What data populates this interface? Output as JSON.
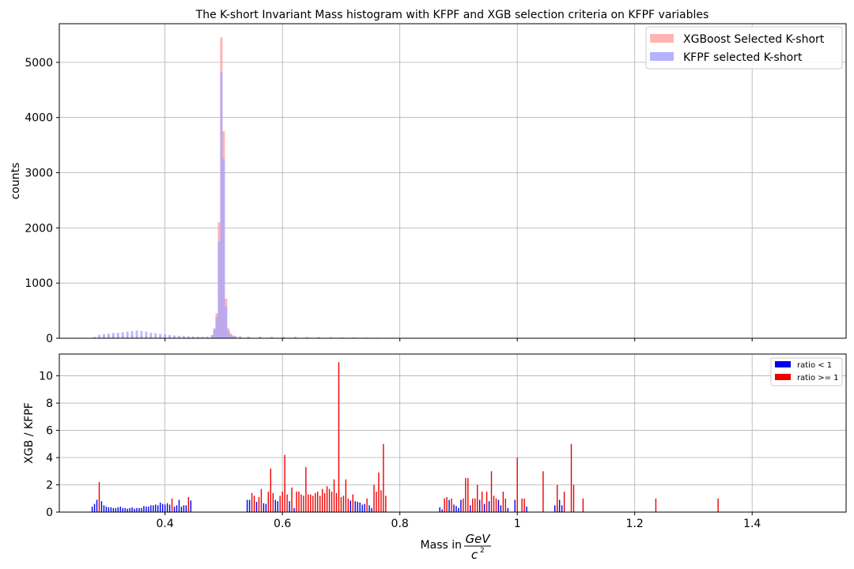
{
  "chart_data": [
    {
      "type": "bar",
      "title": "The K-short Invariant Mass histogram with KFPF and XGB selection criteria on KFPF variables",
      "xlabel": "",
      "ylabel": "counts",
      "xlim": [
        0.22,
        1.56
      ],
      "ylim": [
        0,
        5700
      ],
      "xticks": [
        0.4,
        0.6,
        0.8,
        1.0,
        1.2,
        1.4
      ],
      "yticks": [
        0,
        1000,
        2000,
        3000,
        4000,
        5000
      ],
      "grid": true,
      "legend_position": "top-right",
      "bin_width": 0.004,
      "series": [
        {
          "name": "XGBoost Selected K-short",
          "color": "#ff9a9a",
          "x": [
            0.27,
            0.278,
            0.286,
            0.294,
            0.302,
            0.31,
            0.318,
            0.326,
            0.334,
            0.342,
            0.35,
            0.358,
            0.366,
            0.374,
            0.382,
            0.39,
            0.398,
            0.406,
            0.414,
            0.422,
            0.43,
            0.438,
            0.446,
            0.454,
            0.462,
            0.47,
            0.478,
            0.482,
            0.486,
            0.49,
            0.494,
            0.498,
            0.502,
            0.506,
            0.51,
            0.514,
            0.518,
            0.526,
            0.54,
            0.56,
            0.58,
            0.6,
            0.62,
            0.64,
            0.66,
            0.68,
            0.7,
            0.72,
            0.74,
            0.76,
            0.78
          ],
          "values": [
            5,
            15,
            30,
            40,
            45,
            45,
            48,
            45,
            45,
            45,
            42,
            40,
            40,
            38,
            36,
            34,
            32,
            30,
            30,
            28,
            28,
            26,
            25,
            25,
            25,
            28,
            60,
            180,
            450,
            2100,
            5450,
            3750,
            720,
            180,
            90,
            50,
            40,
            35,
            30,
            30,
            25,
            25,
            25,
            22,
            20,
            18,
            15,
            15,
            12,
            10,
            8
          ]
        },
        {
          "name": "KFPF selected K-short",
          "color": "#a6a6ff",
          "x": [
            0.27,
            0.278,
            0.286,
            0.294,
            0.302,
            0.31,
            0.318,
            0.326,
            0.334,
            0.342,
            0.35,
            0.358,
            0.366,
            0.374,
            0.382,
            0.39,
            0.398,
            0.406,
            0.414,
            0.422,
            0.43,
            0.438,
            0.446,
            0.454,
            0.462,
            0.47,
            0.478,
            0.482,
            0.486,
            0.49,
            0.494,
            0.498,
            0.502,
            0.506,
            0.51,
            0.514,
            0.518,
            0.526,
            0.54,
            0.56,
            0.58,
            0.6,
            0.62,
            0.64,
            0.66,
            0.68,
            0.7,
            0.72,
            0.74,
            0.76,
            0.78
          ],
          "values": [
            5,
            25,
            60,
            75,
            85,
            95,
            100,
            110,
            120,
            130,
            140,
            130,
            120,
            100,
            90,
            80,
            70,
            60,
            50,
            45,
            40,
            35,
            30,
            28,
            25,
            28,
            50,
            150,
            380,
            1750,
            4820,
            3250,
            580,
            130,
            60,
            40,
            35,
            30,
            25,
            22,
            20,
            20,
            18,
            15,
            15,
            12,
            12,
            10,
            9,
            8,
            6
          ]
        }
      ]
    },
    {
      "type": "bar",
      "title": "",
      "xlabel": "Mass in GeV/c²",
      "xlabel_parts": {
        "prefix": "Mass in",
        "numerator": "GeV",
        "denominator": "c",
        "denominator_exp": "2"
      },
      "ylabel": "XGB / KFPF",
      "xlim": [
        0.22,
        1.56
      ],
      "ylim": [
        0,
        11.6
      ],
      "xticks": [
        0.4,
        0.6,
        0.8,
        1.0,
        1.2,
        1.4
      ],
      "yticks": [
        0,
        2,
        4,
        6,
        8,
        10
      ],
      "grid": true,
      "legend_position": "top-right",
      "series": [
        {
          "name": "ratio < 1",
          "color": "#0000ee",
          "x": [
            0.276,
            0.28,
            0.284,
            0.292,
            0.296,
            0.3,
            0.304,
            0.308,
            0.312,
            0.316,
            0.32,
            0.324,
            0.328,
            0.332,
            0.336,
            0.34,
            0.344,
            0.348,
            0.352,
            0.356,
            0.36,
            0.364,
            0.368,
            0.372,
            0.376,
            0.38,
            0.384,
            0.388,
            0.392,
            0.396,
            0.4,
            0.404,
            0.408,
            0.416,
            0.42,
            0.424,
            0.428,
            0.432,
            0.436,
            0.444,
            0.54,
            0.544,
            0.556,
            0.568,
            0.572,
            0.588,
            0.592,
            0.612,
            0.62,
            0.716,
            0.724,
            0.728,
            0.732,
            0.736,
            0.74,
            0.748,
            0.752,
            0.868,
            0.872,
            0.884,
            0.892,
            0.896,
            0.9,
            0.904,
            0.92,
            0.936,
            0.944,
            0.952,
            0.968,
            0.972,
            0.984,
            0.996,
            1.016,
            1.064,
            1.068,
            1.072,
            1.076
          ],
          "values": [
            0.4,
            0.6,
            0.9,
            0.8,
            0.5,
            0.4,
            0.35,
            0.35,
            0.3,
            0.3,
            0.35,
            0.4,
            0.3,
            0.3,
            0.25,
            0.3,
            0.35,
            0.25,
            0.3,
            0.3,
            0.3,
            0.45,
            0.4,
            0.4,
            0.5,
            0.5,
            0.55,
            0.5,
            0.7,
            0.6,
            0.55,
            0.65,
            0.55,
            0.4,
            0.5,
            0.9,
            0.4,
            0.5,
            0.5,
            0.85,
            0.9,
            0.9,
            0.75,
            0.65,
            0.6,
            0.9,
            0.8,
            0.8,
            0.3,
            0.85,
            0.8,
            0.75,
            0.7,
            0.55,
            0.6,
            0.5,
            0.3,
            0.35,
            0.2,
            0.9,
            0.55,
            0.45,
            0.3,
            0.9,
            0.5,
            0.9,
            0.6,
            0.8,
            0.9,
            0.5,
            0.3,
            0.9,
            0.4,
            0.5,
            0.5,
            0.9,
            0.5
          ]
        },
        {
          "name": "ratio >= 1",
          "color": "#ee0000",
          "x": [
            0.288,
            0.412,
            0.44,
            0.548,
            0.552,
            0.56,
            0.564,
            0.576,
            0.58,
            0.584,
            0.596,
            0.6,
            0.604,
            0.608,
            0.616,
            0.624,
            0.628,
            0.632,
            0.636,
            0.64,
            0.644,
            0.648,
            0.652,
            0.656,
            0.66,
            0.664,
            0.668,
            0.672,
            0.676,
            0.68,
            0.684,
            0.688,
            0.692,
            0.696,
            0.7,
            0.704,
            0.708,
            0.712,
            0.72,
            0.744,
            0.756,
            0.76,
            0.764,
            0.768,
            0.772,
            0.776,
            0.876,
            0.88,
            0.888,
            0.908,
            0.912,
            0.916,
            0.924,
            0.928,
            0.932,
            0.94,
            0.948,
            0.956,
            0.96,
            0.964,
            0.976,
            0.98,
            1.0,
            1.008,
            1.012,
            1.044,
            1.068,
            1.08,
            1.092,
            1.096,
            1.112,
            1.236,
            1.342
          ],
          "values": [
            2.2,
            1.0,
            1.1,
            1.4,
            1.2,
            1.1,
            1.7,
            1.5,
            3.2,
            1.4,
            1.2,
            1.5,
            4.2,
            1.3,
            1.8,
            1.5,
            1.5,
            1.3,
            1.2,
            3.3,
            1.3,
            1.3,
            1.2,
            1.4,
            1.5,
            1.2,
            1.7,
            1.4,
            1.9,
            1.7,
            1.5,
            2.4,
            1.4,
            11.0,
            1.1,
            1.2,
            2.4,
            1.0,
            1.3,
            1.0,
            2.0,
            1.5,
            2.9,
            1.6,
            5.0,
            1.2,
            1.0,
            1.1,
            1.0,
            1.0,
            2.5,
            2.5,
            1.0,
            1.0,
            2.0,
            1.5,
            1.5,
            3.0,
            1.2,
            1.0,
            1.5,
            1.0,
            4.0,
            1.0,
            1.0,
            3.0,
            2.0,
            1.5,
            5.0,
            2.0,
            1.0,
            1.0,
            1.0
          ]
        }
      ]
    }
  ]
}
